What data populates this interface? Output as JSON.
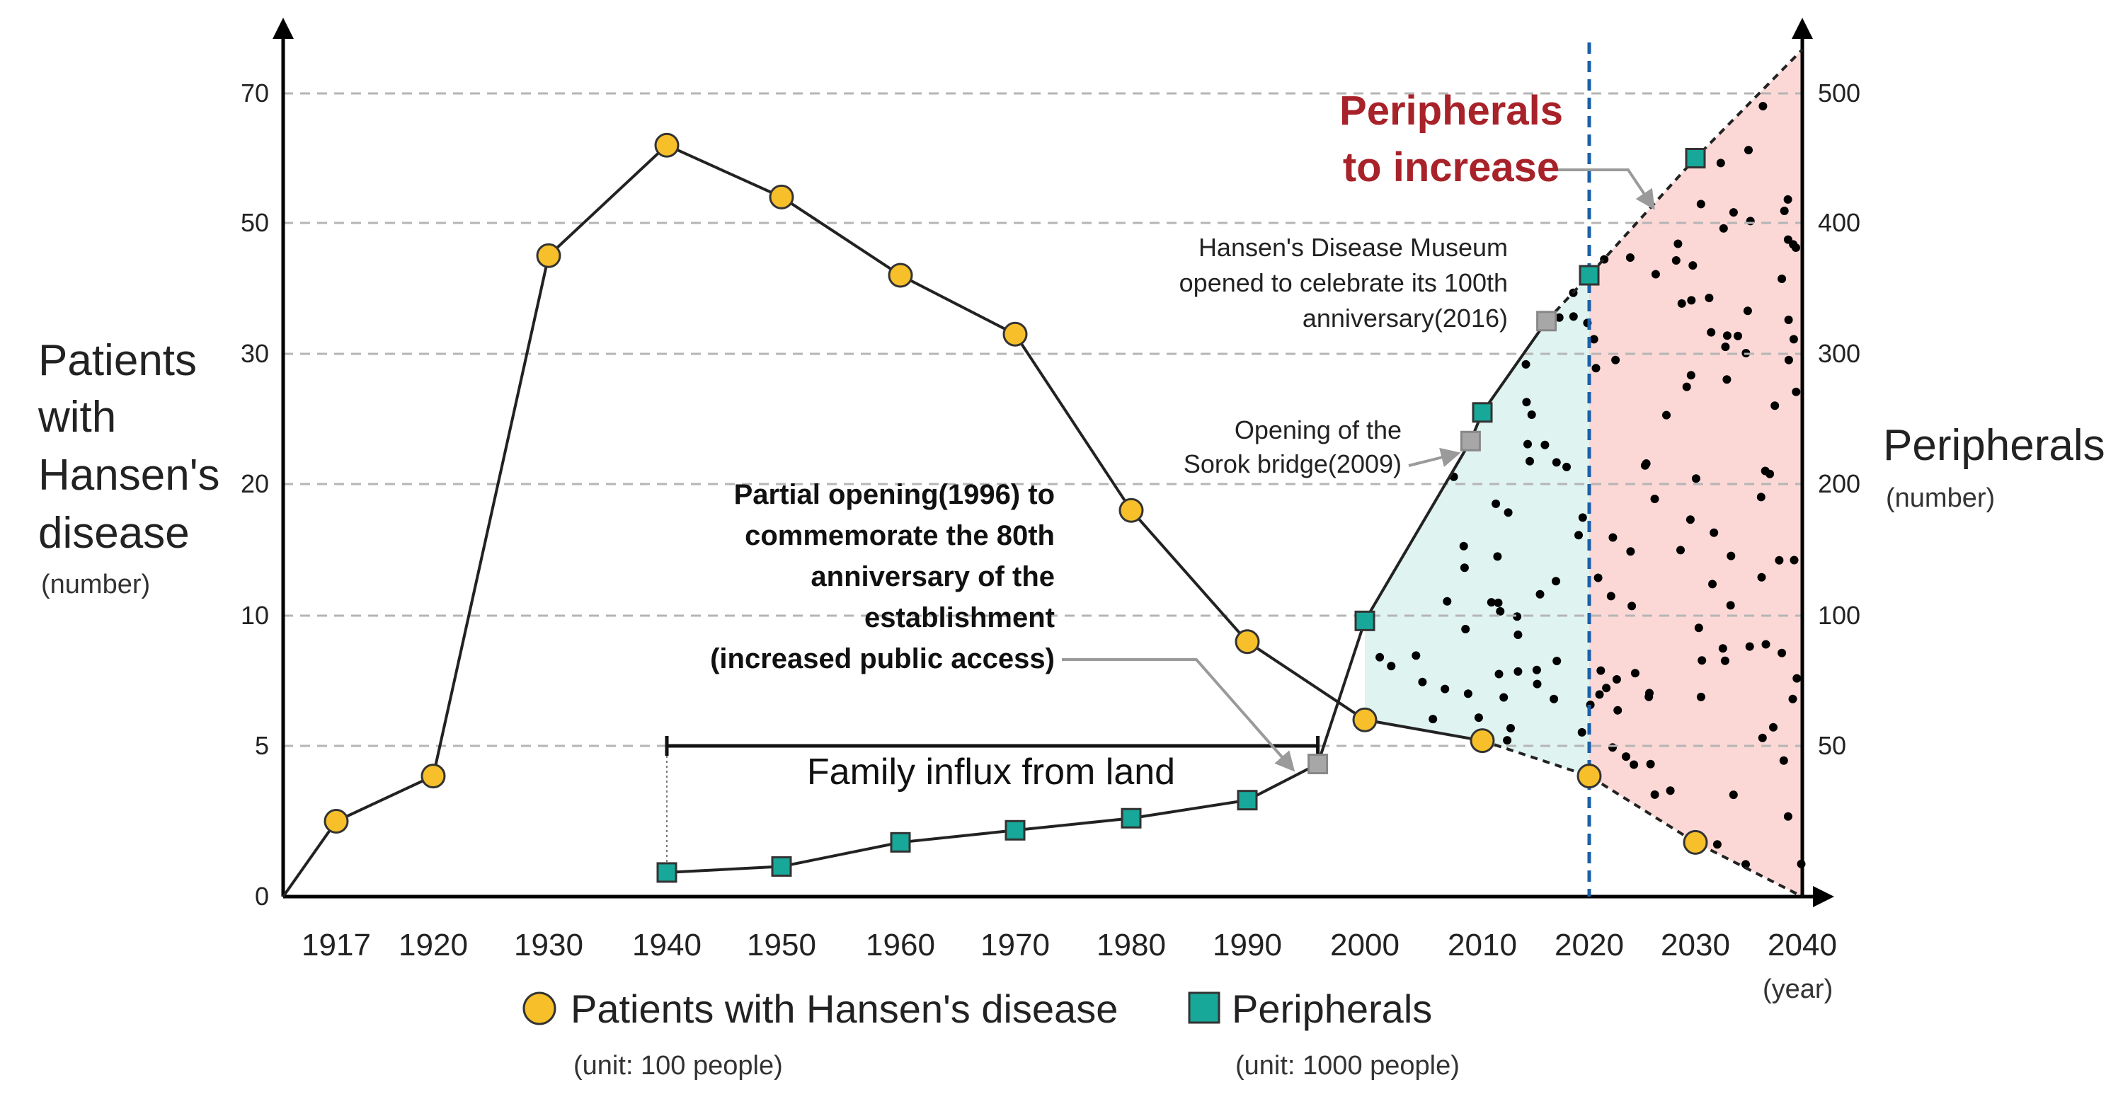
{
  "chart_data": {
    "type": "line",
    "title": "",
    "xlabel": "(year)",
    "x": [
      1917,
      1920,
      1930,
      1940,
      1950,
      1960,
      1970,
      1980,
      1990,
      2000,
      2010,
      2020,
      2030,
      2040
    ],
    "x_tick_labels": [
      "1917",
      "1920",
      "1930",
      "1940",
      "1950",
      "1960",
      "1970",
      "1980",
      "1990",
      "2000",
      "2010",
      "2020",
      "2030",
      "2040"
    ],
    "y_left": {
      "title_lines": [
        "Patients",
        "with",
        "Hansen's",
        "disease"
      ],
      "unit": "(number)",
      "ticks": [
        "0",
        "5",
        "10",
        "20",
        "30",
        "50",
        "70"
      ]
    },
    "y_right": {
      "title": "Peripherals",
      "unit": "(number)",
      "ticks": [
        "50",
        "100",
        "200",
        "300",
        "400",
        "500"
      ]
    },
    "series": [
      {
        "name": "Patients with Hansen's disease",
        "unit": "(unit: 100 people)",
        "color": "#f7c02a",
        "marker": "circle",
        "points": [
          {
            "x": 1917,
            "y": 2.5
          },
          {
            "x": 1920,
            "y": 4
          },
          {
            "x": 1930,
            "y": 45
          },
          {
            "x": 1940,
            "y": 62
          },
          {
            "x": 1950,
            "y": 54
          },
          {
            "x": 1960,
            "y": 42
          },
          {
            "x": 1970,
            "y": 33
          },
          {
            "x": 1980,
            "y": 18
          },
          {
            "x": 1990,
            "y": 9
          },
          {
            "x": 2000,
            "y": 6
          },
          {
            "x": 2010,
            "y": 5.2
          },
          {
            "x": 2020,
            "y": 4
          },
          {
            "x": 2030,
            "y": 1.8
          }
        ]
      },
      {
        "name": "Peripherals",
        "unit": "(unit: 1000 people)",
        "color": "#17a89a",
        "marker": "square",
        "points": [
          {
            "x": 1940,
            "y": 8
          },
          {
            "x": 1950,
            "y": 10
          },
          {
            "x": 1960,
            "y": 18
          },
          {
            "x": 1970,
            "y": 22
          },
          {
            "x": 1980,
            "y": 26
          },
          {
            "x": 1990,
            "y": 32
          },
          {
            "x": 1996,
            "y": 44
          },
          {
            "x": 2000,
            "y": 98
          },
          {
            "x": 2009,
            "y": 233
          },
          {
            "x": 2010,
            "y": 255
          },
          {
            "x": 2016,
            "y": 325
          },
          {
            "x": 2020,
            "y": 360
          },
          {
            "x": 2030,
            "y": 450
          }
        ],
        "highlight_years": [
          1996,
          2009,
          2016
        ]
      }
    ],
    "annotations": {
      "partial_opening": [
        "Partial opening(1996) to",
        "commemorate the 80th",
        "anniversary of the",
        "establishment",
        "(increased public access)"
      ],
      "sorok_bridge": [
        "Opening of the",
        "Sorok bridge(2009)"
      ],
      "museum": [
        "Hansen's Disease Museum",
        "opened to celebrate its 100th",
        "anniversary(2016)"
      ],
      "increase": [
        "Peripherals",
        "to increase"
      ],
      "family_influx": "Family influx from land"
    },
    "shaded_regions": [
      {
        "from": 2000,
        "to": 2020,
        "color": "#dff3f1"
      },
      {
        "from": 2020,
        "to": 2040,
        "color": "#fbd8d6"
      }
    ],
    "divider_year": 2020,
    "family_influx_range": [
      1940,
      1996
    ]
  }
}
